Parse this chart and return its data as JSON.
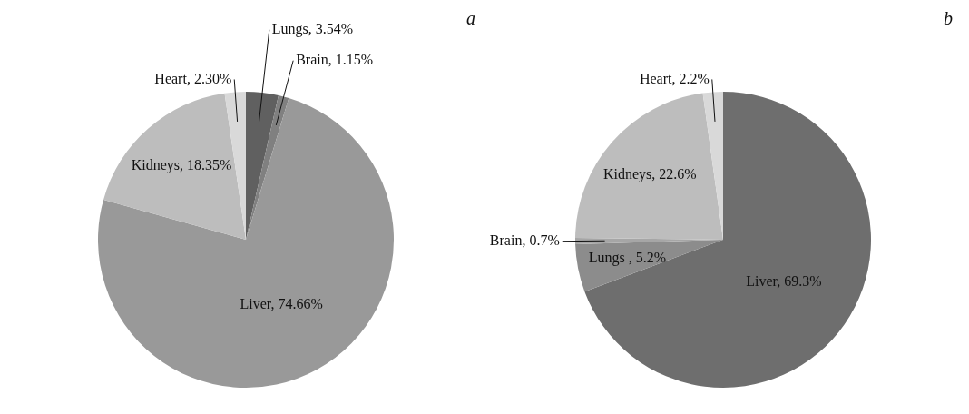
{
  "chart_data": [
    {
      "type": "pie",
      "title": "a",
      "categories": [
        "Lungs",
        "Brain",
        "Liver",
        "Kidneys",
        "Heart"
      ],
      "values": [
        3.54,
        1.15,
        74.66,
        18.35,
        2.3
      ],
      "value_labels": [
        "3.54%",
        "1.15%",
        "74.66%",
        "18.35%",
        "2.30%"
      ],
      "colors": [
        "#606060",
        "#808080",
        "#999999",
        "#bdbdbd",
        "#d9d9d9"
      ],
      "legend": false
    },
    {
      "type": "pie",
      "title": "b",
      "categories": [
        "Liver",
        "Lungs ",
        "Brain",
        "Kidneys",
        "Heart"
      ],
      "values": [
        69.3,
        5.2,
        0.7,
        22.6,
        2.2
      ],
      "value_labels": [
        "69.3%",
        "5.2%",
        "0.7%",
        "22.6%",
        "2.2%"
      ],
      "colors": [
        "#6e6e6e",
        "#8c8c8c",
        "#a6a6a6",
        "#bdbdbd",
        "#d9d9d9"
      ],
      "legend": false
    }
  ]
}
